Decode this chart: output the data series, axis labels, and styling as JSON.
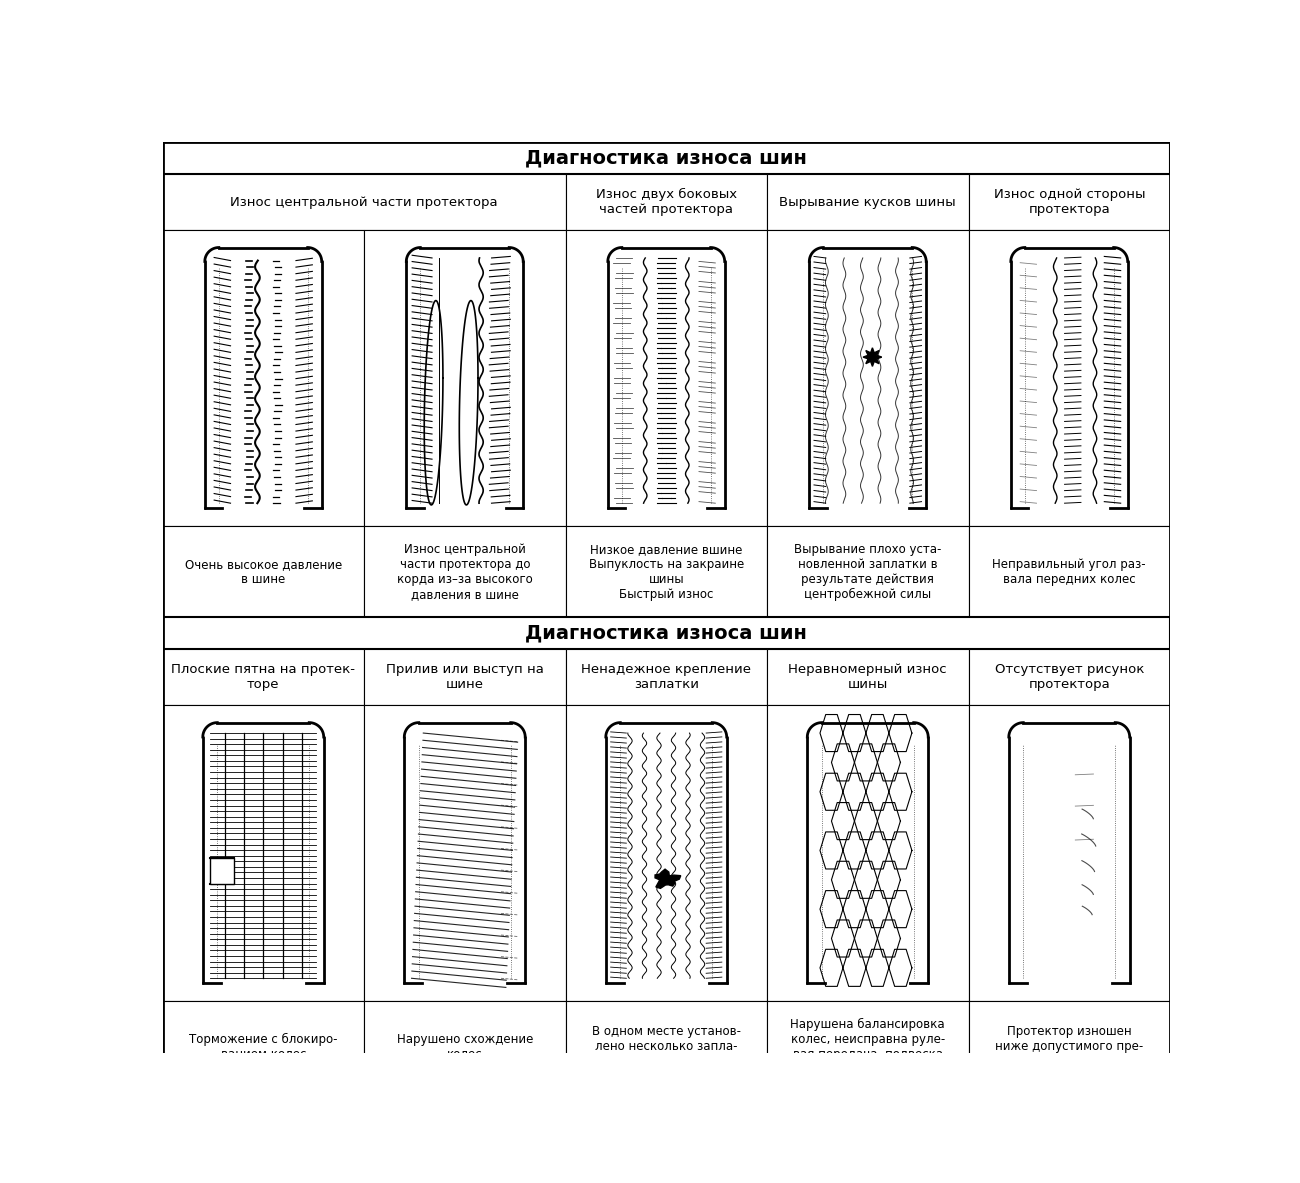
{
  "background_color": "#ffffff",
  "section1_header": "Диагностика износа шин",
  "section2_header": "Диагностика износа шин",
  "section1_col_headers": [
    "Износ центральной части протектора",
    "Износ двух боковых\nчастей протектора",
    "Вырывание кусков шины",
    "Износ одной стороны\nпротектора"
  ],
  "section1_causes": [
    "Очень высокое давление\nв шине",
    "Износ центральной\nчасти протектора до\nкорда из–за высокого\nдавления в шине",
    "Низкое давление вшине\nВыпуклость на закраине\nшины\nБыстрый износ",
    "Вырывание плохо уста-\nновленной заплатки в\nрезультате действия\nцентробежной силы",
    "Неправильный угол раз-\nвала передних колес"
  ],
  "section2_col_headers": [
    "Плоские пятна на протек-\nторе",
    "Прилив или выступ на\nшине",
    "Ненадежное крепление\nзаплатки",
    "Неравномерный износ\nшины",
    "Отсутствует рисунок\nпротектора"
  ],
  "section2_causes": [
    "Торможение с блокиро-\nванием колес",
    "Нарушено схождение\nколес",
    "В одном месте установ-\nлено несколько запла-\nток",
    "Нарушена балансировка\nколес, неисправна руле-\nвая передача, подвеска\nили подшипник",
    "Протектор изношен\nниже допустимого пре-\nдела"
  ]
}
